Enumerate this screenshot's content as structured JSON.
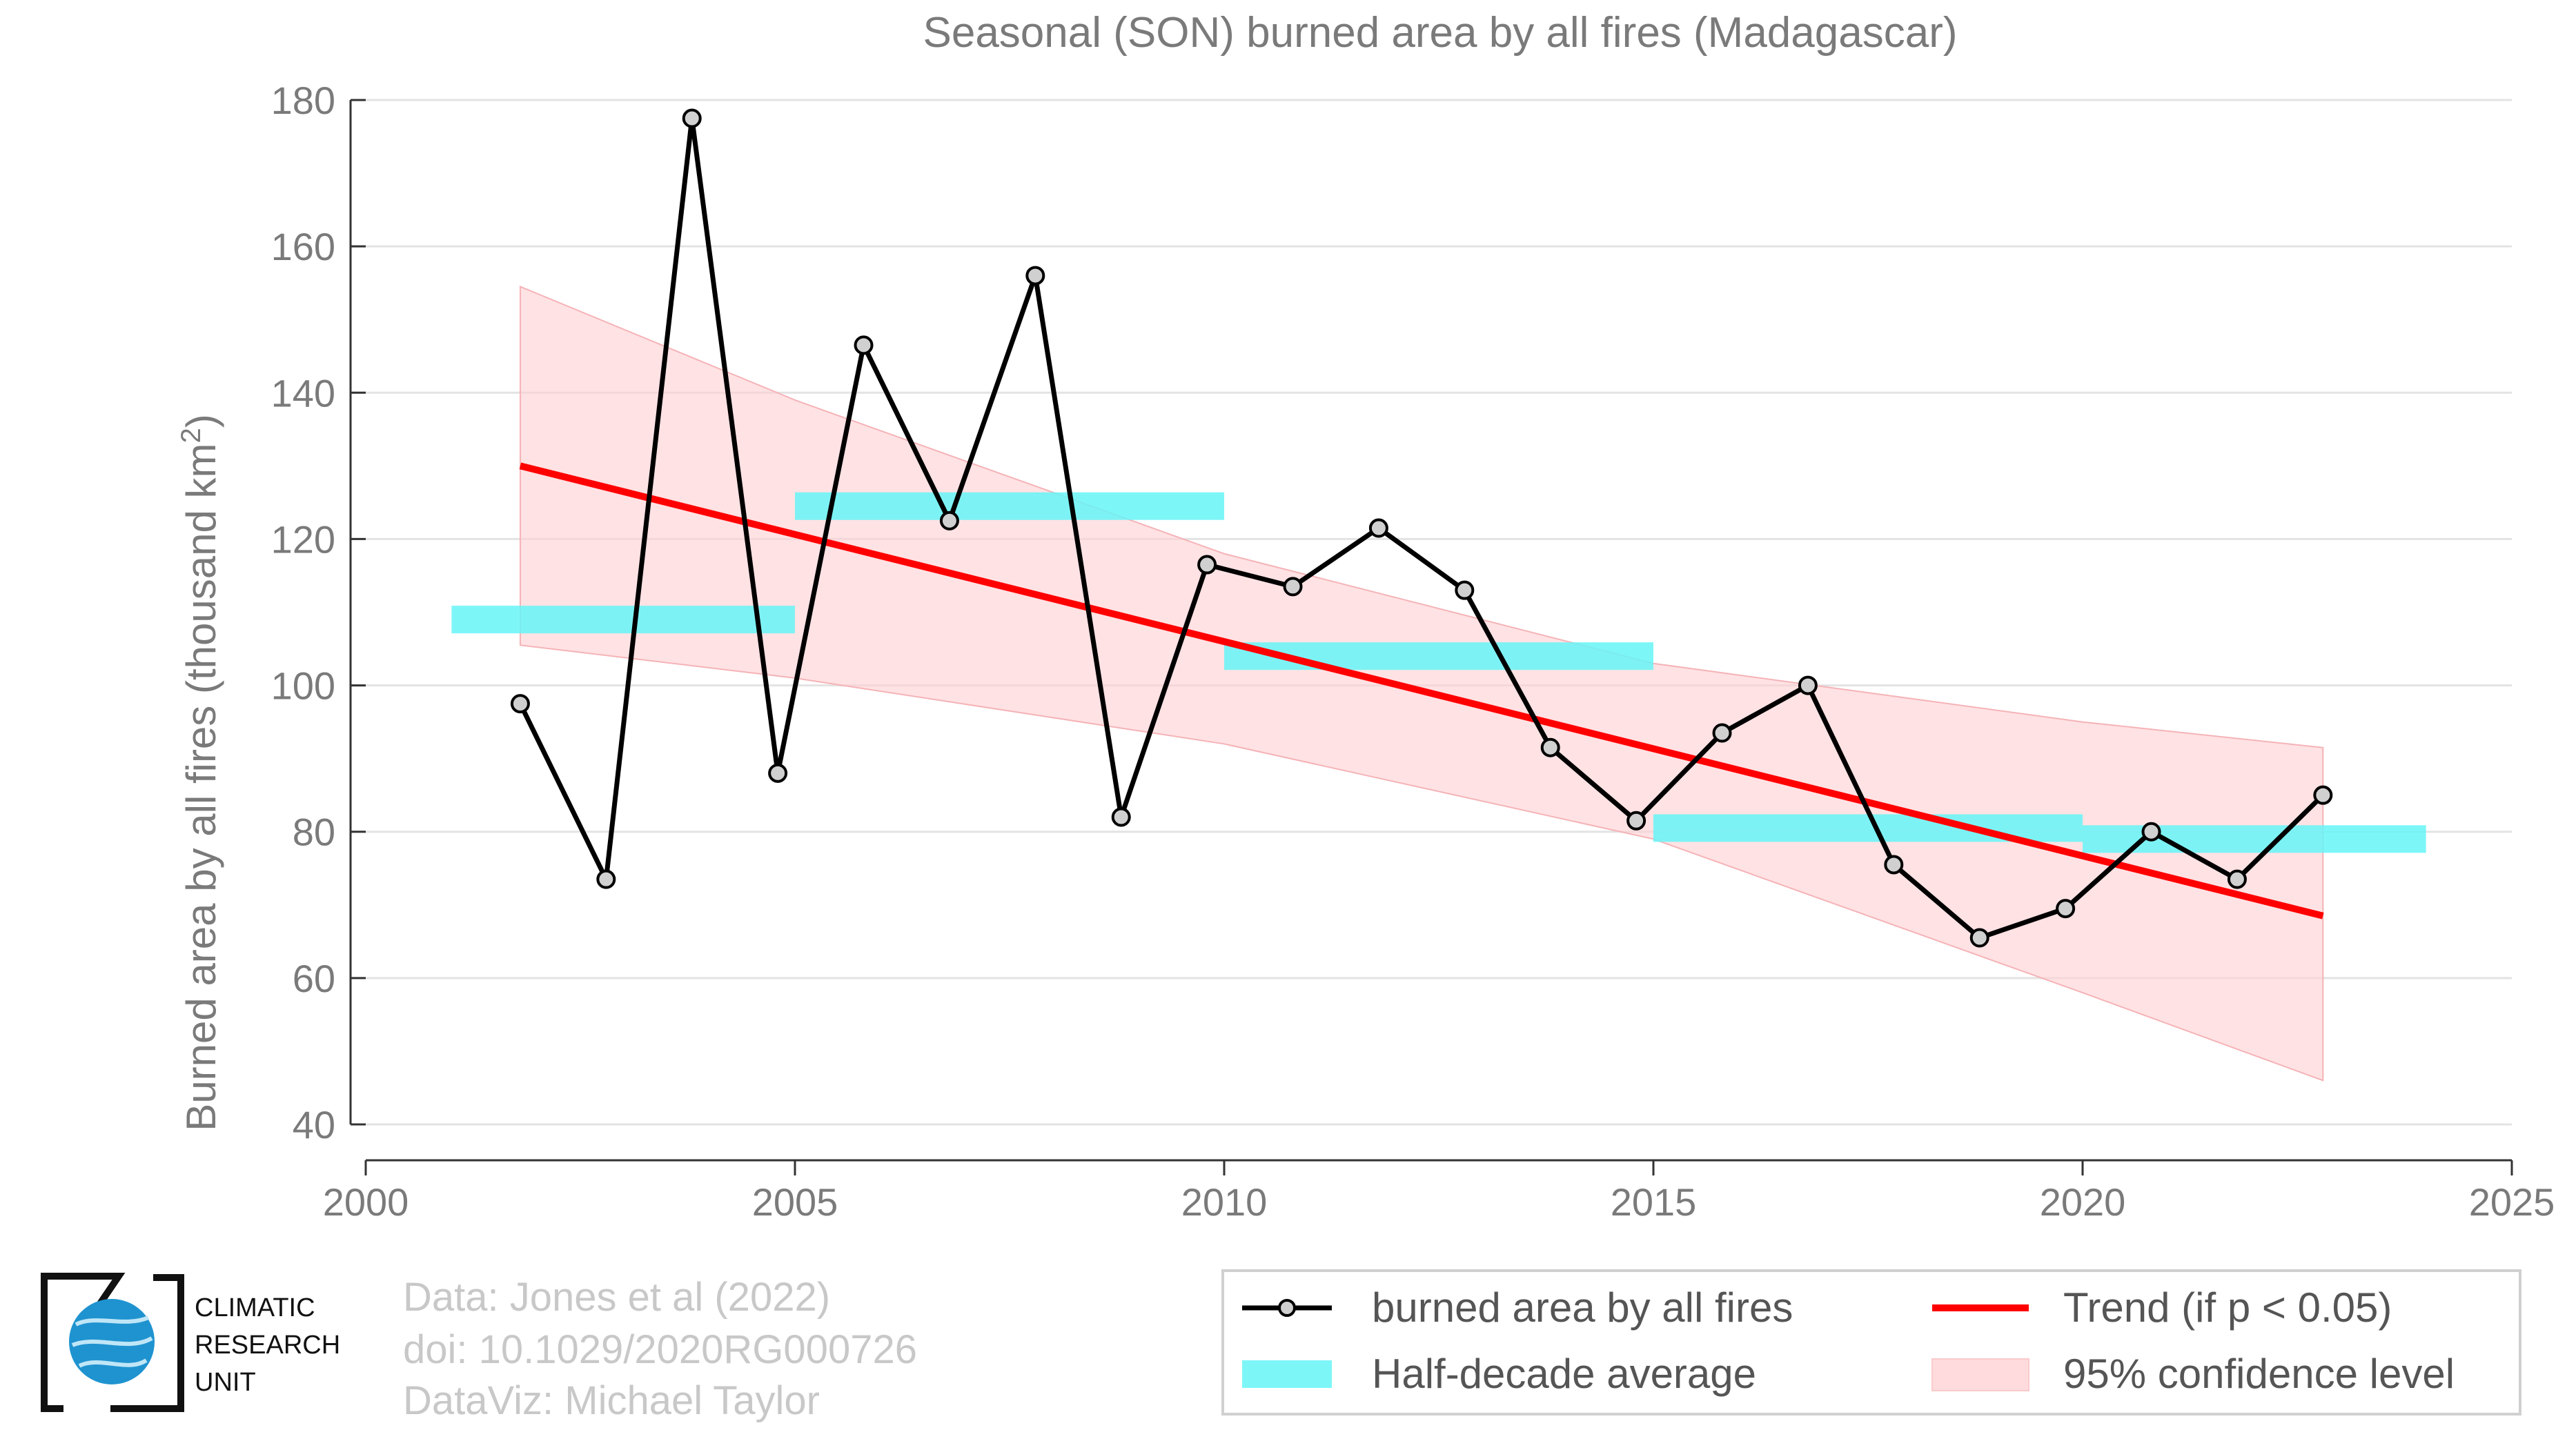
{
  "chart_data": {
    "type": "line",
    "title": "Seasonal (SON) burned area by all fires (Madagascar)",
    "ylabel_main": "Burned area by all fires (thousand km",
    "ylabel_sup": "2",
    "ylabel_end": ")",
    "xlim": [
      2000,
      2025
    ],
    "ylim": [
      40,
      180
    ],
    "x_ticks": [
      2000,
      2005,
      2010,
      2015,
      2020,
      2025
    ],
    "y_ticks": [
      40,
      60,
      80,
      100,
      120,
      140,
      160,
      180
    ],
    "grid": true,
    "series": [
      {
        "name": "burned area by all fires",
        "color": "#000000",
        "marker_fill": "#d0d0d0",
        "x": [
          2001.8,
          2002.8,
          2003.8,
          2004.8,
          2005.8,
          2006.8,
          2007.8,
          2008.8,
          2009.8,
          2010.8,
          2011.8,
          2012.8,
          2013.8,
          2014.8,
          2015.8,
          2016.8,
          2017.8,
          2018.8,
          2019.8,
          2020.8,
          2021.8,
          2022.8
        ],
        "y": [
          97.5,
          73.5,
          177.5,
          88,
          146.5,
          122.5,
          156,
          82,
          116.5,
          113.5,
          121.5,
          113,
          91.5,
          81.5,
          93.5,
          100,
          75.5,
          65.5,
          69.5,
          80,
          73.5,
          85
        ]
      }
    ],
    "half_decade_average": {
      "name": "Half-decade average",
      "color": "#66f5f7",
      "segments": [
        {
          "x_start": 2001,
          "x_end": 2005,
          "y": 109
        },
        {
          "x_start": 2005,
          "x_end": 2010,
          "y": 124.5
        },
        {
          "x_start": 2010,
          "x_end": 2015,
          "y": 104
        },
        {
          "x_start": 2015,
          "x_end": 2020,
          "y": 80.5
        },
        {
          "x_start": 2020,
          "x_end": 2024,
          "y": 79
        }
      ]
    },
    "trend": {
      "name": "Trend (if p < 0.05)",
      "color": "#ff0000",
      "x": [
        2001.8,
        2022.8
      ],
      "y": [
        130,
        68.5
      ]
    },
    "confidence_band": {
      "name": "95% confidence level",
      "color": "#ffcfd2",
      "x": [
        2001.8,
        2005,
        2010,
        2015,
        2020,
        2022.8
      ],
      "upper": [
        154.5,
        139,
        118,
        103,
        95,
        91.5
      ],
      "lower": [
        105.5,
        101,
        92,
        79,
        58,
        46
      ]
    },
    "legend_position": "bottom-right"
  },
  "credits": {
    "line1": "Data: Jones et al (2022)",
    "line2": "doi: 10.1029/2020RG000726",
    "line3": "DataViz: Michael Taylor"
  },
  "logo": {
    "line1": "CLIMATIC",
    "line2": "RESEARCH",
    "line3": "UNIT"
  }
}
